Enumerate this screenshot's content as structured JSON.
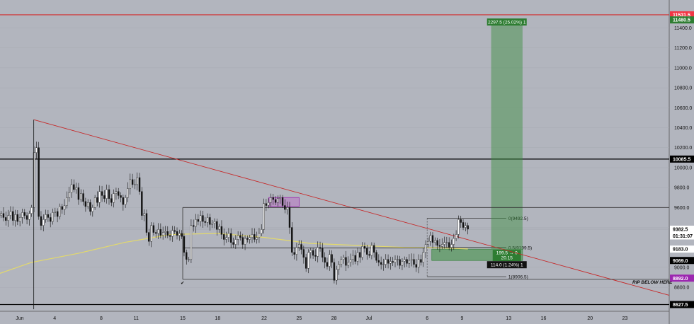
{
  "chart_data": {
    "type": "candlestick",
    "title": "",
    "y_axis": {
      "ticks": [
        11400,
        11200,
        11000,
        10800,
        10600,
        10400,
        10200,
        10000,
        9800,
        9600,
        9400,
        9000,
        8800
      ],
      "range": [
        8560,
        11680
      ],
      "price_labels": [
        {
          "value": "11531.5",
          "price": 11531.5,
          "bg": "#f23645",
          "fg": "#ffffff"
        },
        {
          "value": "11480.5",
          "price": 11480.5,
          "bg": "#2e7d32",
          "fg": "#ffffff"
        },
        {
          "value": "10085.5",
          "price": 10085.5,
          "bg": "#000000",
          "fg": "#ffffff"
        },
        {
          "value": "9382.5",
          "price": 9382.5,
          "bg": "#ffffff",
          "fg": "#000000"
        },
        {
          "value": "01:31:07",
          "price": 9315,
          "bg": "#ffffff",
          "fg": "#000000"
        },
        {
          "value": "9183.0",
          "price": 9183,
          "bg": "#ffffff",
          "fg": "#000000"
        },
        {
          "value": "9069.0",
          "price": 9069,
          "bg": "#000000",
          "fg": "#ffffff"
        },
        {
          "value": "8892.0",
          "price": 8892,
          "bg": "#9c27b0",
          "fg": "#ffffff"
        },
        {
          "value": "8627.5",
          "price": 8627.5,
          "bg": "#000000",
          "fg": "#ffffff"
        }
      ]
    },
    "x_axis": {
      "ticks": [
        {
          "label": "Jun",
          "day": 1
        },
        {
          "label": "4",
          "day": 4
        },
        {
          "label": "8",
          "day": 8
        },
        {
          "label": "11",
          "day": 11
        },
        {
          "label": "15",
          "day": 15
        },
        {
          "label": "18",
          "day": 18
        },
        {
          "label": "22",
          "day": 22
        },
        {
          "label": "25",
          "day": 25
        },
        {
          "label": "28",
          "day": 28
        },
        {
          "label": "Jul",
          "day": 31
        },
        {
          "label": "6",
          "day": 36
        },
        {
          "label": "9",
          "day": 39
        },
        {
          "label": "13",
          "day": 43
        },
        {
          "label": "16",
          "day": 46
        },
        {
          "label": "20",
          "day": 50
        },
        {
          "label": "23",
          "day": 53
        }
      ],
      "range": [
        -0.7,
        56.8
      ]
    },
    "horizontal_lines": [
      {
        "price": 11531.5,
        "color": "#d32f2f"
      },
      {
        "price": 10085.5,
        "color": "#000000"
      },
      {
        "price": 8627.5,
        "color": "#000000"
      }
    ],
    "fib_levels": [
      {
        "label": "0(9492.5)",
        "price": 9492.5
      },
      {
        "label": "0.5(9199.5)",
        "price": 9199.5
      },
      {
        "label": "1(8906.5)",
        "price": 8906.5
      }
    ],
    "long_position": {
      "target_label": "2297.5 (25.02%) 1",
      "stop_label": "114.0 (1.24%) 1",
      "entry_label_line1": "199.5 → 0",
      "entry_label_line2": "20.15",
      "entry": 9183,
      "target": 11480.5,
      "stop": 9069
    },
    "annotation": "RIP BELOW HERE",
    "moving_average": [
      {
        "day": -0.7,
        "price": 8940
      },
      {
        "day": 2,
        "price": 9050
      },
      {
        "day": 6,
        "price": 9140
      },
      {
        "day": 10,
        "price": 9250
      },
      {
        "day": 14,
        "price": 9330
      },
      {
        "day": 18,
        "price": 9340
      },
      {
        "day": 22,
        "price": 9300
      },
      {
        "day": 26,
        "price": 9240
      },
      {
        "day": 30,
        "price": 9220
      },
      {
        "day": 34,
        "price": 9200
      },
      {
        "day": 37,
        "price": 9195
      },
      {
        "day": 39.5,
        "price": 9185
      }
    ],
    "candles_close": [
      9540,
      9500,
      9470,
      9520,
      9560,
      9470,
      9530,
      9460,
      9500,
      9550,
      9520,
      9480,
      9540,
      9600,
      10150,
      10200,
      9510,
      9420,
      9480,
      9530,
      9500,
      9460,
      9550,
      9560,
      9510,
      9610,
      9580,
      9620,
      9700,
      9750,
      9830,
      9780,
      9800,
      9680,
      9740,
      9660,
      9610,
      9650,
      9560,
      9600,
      9700,
      9650,
      9760,
      9720,
      9690,
      9780,
      9690,
      9650,
      9740,
      9760,
      9720,
      9700,
      9630,
      9700,
      9790,
      9880,
      9830,
      9830,
      9900,
      9760,
      9520,
      9540,
      9350,
      9260,
      9420,
      9350,
      9340,
      9380,
      9320,
      9350,
      9360,
      9320,
      9310,
      9370,
      9360,
      9320,
      9340,
      9310,
      9150,
      9080,
      9080,
      9420,
      9410,
      9480,
      9460,
      9520,
      9460,
      9450,
      9500,
      9430,
      9440,
      9460,
      9380,
      9410,
      9330,
      9280,
      9300,
      9340,
      9250,
      9230,
      9280,
      9320,
      9300,
      9230,
      9290,
      9280,
      9300,
      9330,
      9280,
      9300,
      9340,
      9380,
      9640,
      9620,
      9650,
      9700,
      9680,
      9650,
      9690,
      9700,
      9620,
      9580,
      9600,
      9400,
      9150,
      9130,
      9200,
      9230,
      9180,
      9100,
      8990,
      9150,
      9170,
      9120,
      9110,
      9200,
      9190,
      9100,
      9050,
      9010,
      9130,
      9050,
      8870,
      8980,
      9030,
      9080,
      9100,
      9020,
      9050,
      9080,
      9120,
      9060,
      9150,
      9100,
      9210,
      9190,
      9130,
      9120,
      9220,
      9150,
      9070,
      9050,
      9030,
      9030,
      9080,
      9040,
      9060,
      9050,
      9080,
      9080,
      9020,
      9060,
      9080,
      9040,
      9070,
      9080,
      9030,
      9000,
      9080,
      9050,
      9150,
      9230,
      9260,
      9320,
      9250,
      9270,
      9220,
      9210,
      9230,
      9250,
      9250,
      9200,
      9230,
      9290,
      9330,
      9480,
      9450,
      9400,
      9420,
      9383
    ],
    "price_now": 9382.5
  }
}
